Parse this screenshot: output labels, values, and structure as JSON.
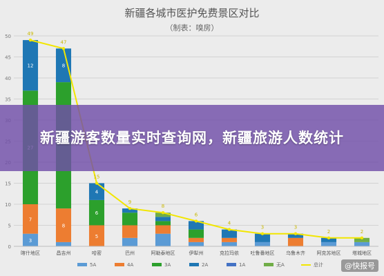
{
  "banner": {
    "headline": "新疆游客数量实时查询网，新疆旅游人数统计"
  },
  "watermark": {
    "text": "@快报号"
  },
  "chart_data": {
    "type": "bar",
    "stacked": true,
    "title": "新疆各城市医护免费景区对比",
    "subtitle": "（制表：嗅房）",
    "categories": [
      "喀什地区",
      "昌吉州",
      "哈密",
      "巴州",
      "阿勒泰地区",
      "伊犁州",
      "克拉玛依",
      "吐鲁番地区",
      "乌鲁木齐",
      "阿克苏地区",
      "塔城地区"
    ],
    "series": [
      {
        "name": "5A",
        "color": "#5b9bd5",
        "values": [
          3,
          1,
          0,
          2,
          3,
          1,
          1,
          1,
          0,
          1,
          1
        ]
      },
      {
        "name": "4A",
        "color": "#ed7d31",
        "values": [
          7,
          8,
          5,
          3,
          2,
          1,
          1,
          0,
          2,
          0,
          0
        ]
      },
      {
        "name": "3A",
        "color": "#2ca02c",
        "values": [
          27,
          30,
          6,
          3,
          1,
          2,
          0,
          0,
          0,
          0,
          0
        ]
      },
      {
        "name": "2A",
        "color": "#1f77b4",
        "values": [
          12,
          8,
          4,
          1,
          1,
          2,
          2,
          2,
          1,
          1,
          0
        ]
      },
      {
        "name": "1A",
        "color": "#4472c4",
        "values": [
          0,
          0,
          0,
          0,
          0,
          0,
          0,
          0,
          0,
          0,
          0
        ]
      },
      {
        "name": "无A",
        "color": "#70ad47",
        "values": [
          0,
          0,
          0,
          0,
          1,
          0,
          0,
          0,
          0,
          0,
          1
        ]
      }
    ],
    "total": {
      "name": "总计",
      "color": "#f2e600",
      "values": [
        49,
        47,
        15,
        9,
        8,
        6,
        4,
        3,
        3,
        2,
        2
      ]
    },
    "segment_labels": [
      [
        "3",
        "7",
        "27",
        "12",
        "",
        ""
      ],
      [
        "",
        "8",
        "",
        "8",
        "",
        ""
      ],
      [
        "",
        "5",
        "6",
        "4",
        "",
        ""
      ],
      [
        "",
        "",
        "",
        "",
        "",
        ""
      ],
      [
        "",
        "",
        "",
        "",
        "",
        ""
      ],
      [
        "",
        "",
        "",
        "",
        "",
        ""
      ],
      [
        "",
        "",
        "",
        "",
        "",
        ""
      ],
      [
        "",
        "",
        "",
        "",
        "",
        ""
      ],
      [
        "",
        "",
        "",
        "",
        "",
        ""
      ],
      [
        "",
        "",
        "",
        "",
        "",
        ""
      ],
      [
        "",
        "",
        "",
        "",
        "",
        ""
      ]
    ],
    "ylim": [
      0,
      50
    ],
    "yticks": [
      0,
      5,
      10,
      15,
      20,
      25,
      30,
      35,
      40,
      45,
      50
    ],
    "grid": true,
    "legend_position": "bottom"
  }
}
